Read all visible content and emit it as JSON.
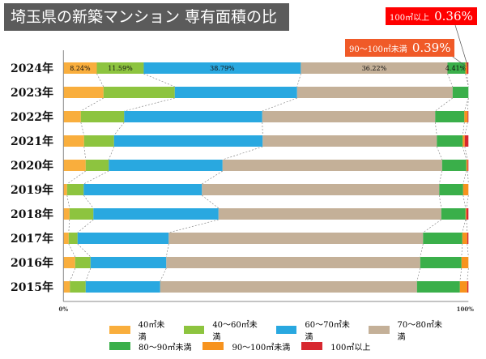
{
  "chart_data": {
    "type": "bar",
    "orientation": "horizontal",
    "stacked": "percent",
    "title": "埼玉県の新築マンション 専有面積の比率推移",
    "categories": [
      "2024年",
      "2023年",
      "2022年",
      "2021年",
      "2020年",
      "2019年",
      "2018年",
      "2017年",
      "2016年",
      "2015年"
    ],
    "xlim": [
      0,
      100
    ],
    "x_tick_labels": [
      "0%",
      "100%"
    ],
    "grid": false,
    "legend_placement": "bottom",
    "series": [
      {
        "name": "40㎡未満",
        "color": "#f9ae3d",
        "values": [
          8.24,
          9.9,
          4.3,
          5.1,
          5.5,
          0.9,
          1.5,
          1.3,
          2.9,
          1.6
        ]
      },
      {
        "name": "40～60㎡未満",
        "color": "#8dc43f",
        "values": [
          11.59,
          17.6,
          10.7,
          7.4,
          5.7,
          4.1,
          5.9,
          2.2,
          3.8,
          3.9
        ]
      },
      {
        "name": "60～70㎡未満",
        "color": "#29a8e0",
        "values": [
          38.79,
          30.2,
          34.1,
          36.7,
          28.1,
          29.2,
          30.9,
          22.5,
          18.7,
          18.4
        ]
      },
      {
        "name": "70～80㎡未満",
        "color": "#c4b098",
        "values": [
          36.22,
          38.4,
          42.7,
          43.0,
          54.2,
          58.6,
          55.0,
          62.8,
          62.7,
          63.4
        ]
      },
      {
        "name": "80～90㎡未満",
        "color": "#3aaf4a",
        "values": [
          4.41,
          3.9,
          7.2,
          6.4,
          6.0,
          5.9,
          6.0,
          9.7,
          10.2,
          10.6
        ]
      },
      {
        "name": "90～100㎡未満",
        "color": "#f7931e",
        "values": [
          0.39,
          0,
          0.8,
          0.5,
          0.3,
          1.3,
          0.2,
          1.2,
          1.7,
          1.8
        ]
      },
      {
        "name": "100㎡以上",
        "color": "#d7282f",
        "values": [
          0.36,
          0,
          0.2,
          0.9,
          0.2,
          0,
          0.5,
          0.3,
          0,
          0.3
        ]
      }
    ],
    "data_labels_2024": [
      "8.24%",
      "11.59%",
      "38.79%",
      "36.22%",
      "4.41%"
    ],
    "callouts": [
      {
        "label": "100㎡以上",
        "value": "0.36%",
        "color": "#ff0000"
      },
      {
        "label": "90～100㎡未満",
        "value": "0.39%",
        "color": "#f05a28"
      }
    ]
  }
}
